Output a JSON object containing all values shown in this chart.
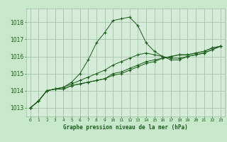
{
  "title": "Graphe pression niveau de la mer (hPa)",
  "background_color": "#c8e8cc",
  "plot_bg_color": "#d4ecd8",
  "grid_color": "#9ebfa3",
  "line_color": "#1a5c1a",
  "ylim": [
    1012.5,
    1018.8
  ],
  "yticks": [
    1013,
    1014,
    1015,
    1016,
    1017,
    1018
  ],
  "xlim": [
    -0.5,
    23.5
  ],
  "series": [
    [
      1013.0,
      1013.4,
      1014.0,
      1014.1,
      1014.1,
      1014.3,
      1014.4,
      1014.5,
      1014.6,
      1014.7,
      1014.9,
      1015.0,
      1015.2,
      1015.4,
      1015.6,
      1015.7,
      1015.9,
      1016.0,
      1016.1,
      1016.1,
      1016.2,
      1016.3,
      1016.5,
      1016.6
    ],
    [
      1013.0,
      1013.4,
      1014.0,
      1014.1,
      1014.2,
      1014.5,
      1015.0,
      1015.8,
      1016.8,
      1017.4,
      1018.1,
      1018.2,
      1018.3,
      1017.8,
      1016.8,
      1016.3,
      1016.0,
      1015.8,
      1015.8,
      1016.0,
      1016.1,
      1016.2,
      1016.4,
      1016.6
    ],
    [
      1013.0,
      1013.4,
      1014.0,
      1014.1,
      1014.1,
      1014.3,
      1014.4,
      1014.5,
      1014.6,
      1014.7,
      1015.0,
      1015.1,
      1015.3,
      1015.5,
      1015.7,
      1015.8,
      1015.9,
      1016.0,
      1016.1,
      1016.1,
      1016.2,
      1016.3,
      1016.5,
      1016.6
    ],
    [
      1013.0,
      1013.4,
      1014.0,
      1014.1,
      1014.2,
      1014.4,
      1014.6,
      1014.8,
      1015.0,
      1015.2,
      1015.5,
      1015.7,
      1015.9,
      1016.1,
      1016.2,
      1016.1,
      1016.0,
      1015.9,
      1015.9,
      1016.0,
      1016.1,
      1016.2,
      1016.4,
      1016.6
    ]
  ]
}
